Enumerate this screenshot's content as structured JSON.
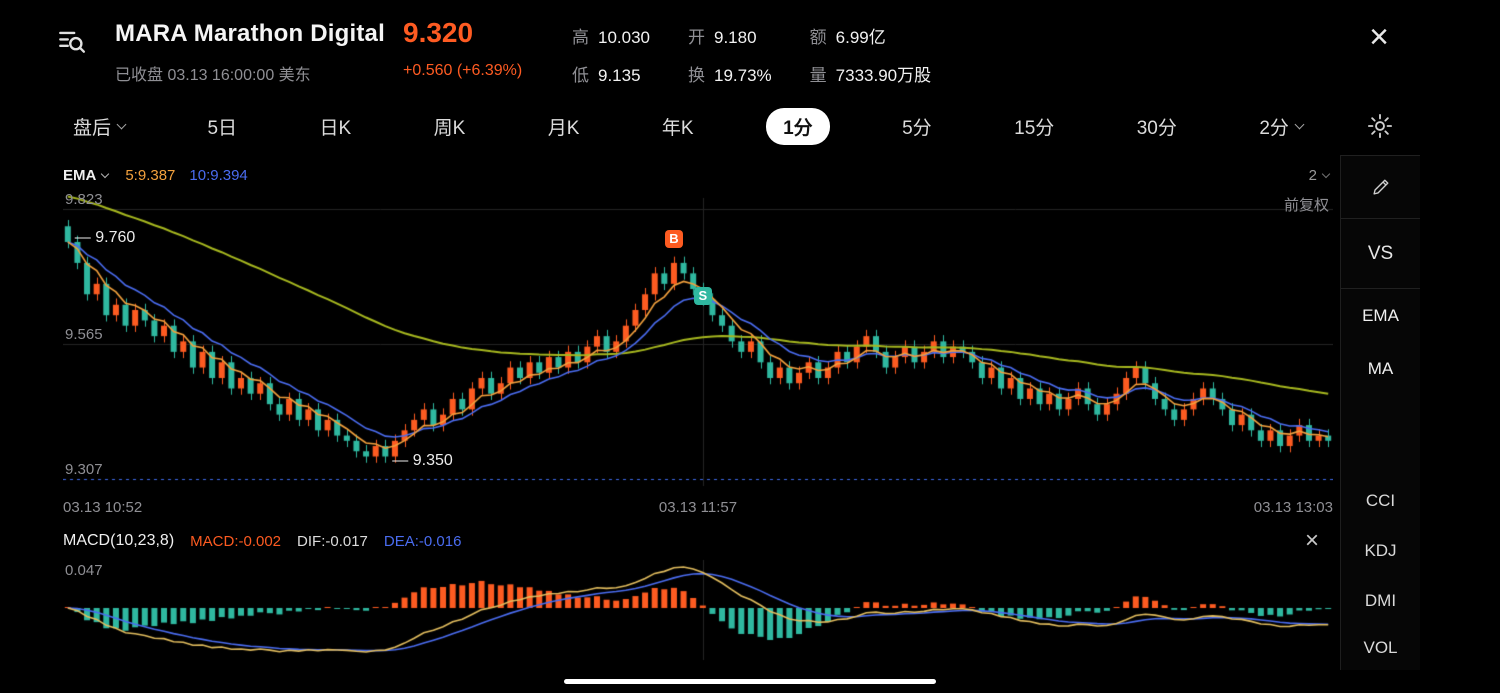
{
  "header": {
    "title": "MARA Marathon Digital",
    "status": "已收盘 03.13 16:00:00 美东",
    "price": "9.320",
    "change": "+0.560 (+6.39%)",
    "stats": [
      {
        "label": "高",
        "value": "10.030"
      },
      {
        "label": "低",
        "value": "9.135"
      },
      {
        "label": "开",
        "value": "9.180"
      },
      {
        "label": "换",
        "value": "19.73%"
      },
      {
        "label": "额",
        "value": "6.99亿"
      },
      {
        "label": "量",
        "value": "7333.90万股"
      }
    ]
  },
  "tabs": [
    {
      "label": "盘后",
      "chevron": true
    },
    {
      "label": "5日"
    },
    {
      "label": "日K"
    },
    {
      "label": "周K"
    },
    {
      "label": "月K"
    },
    {
      "label": "年K"
    },
    {
      "label": "1分",
      "selected": true
    },
    {
      "label": "5分"
    },
    {
      "label": "15分"
    },
    {
      "label": "30分"
    },
    {
      "label": "2分",
      "chevron": true
    }
  ],
  "chart": {
    "indicator_label": "EMA",
    "ema5_label": "5:9.387",
    "ema10_label": "10:9.394",
    "decimals_label": "2",
    "adjust_label": "前复权",
    "y_labels": [
      "9.823",
      "9.565",
      "9.307"
    ],
    "time_labels": [
      "03.13 10:52",
      "03.13 11:57",
      "03.13 13:03"
    ],
    "annotation_high": "— 9.760",
    "annotation_low": "— 9.350",
    "marker_buy": "B",
    "marker_sell": "S"
  },
  "macd_panel": {
    "title": "MACD(10,23,8)",
    "macd_label": "MACD:-0.002",
    "dif_label": "DIF:-0.017",
    "dea_label": "DEA:-0.016",
    "scale_label": "0.047"
  },
  "sidebar": {
    "items": [
      "VS",
      "EMA",
      "MA",
      "CCI",
      "KDJ",
      "DMI",
      "VOL"
    ]
  },
  "colors": {
    "up": "#fd5b21",
    "down": "#2fb8a0",
    "price_accent": "#fe5b22",
    "ema5": "#f3a13d",
    "ema10": "#4a6cf0",
    "ma_long": "#a6b71f",
    "dotted": "#3e6ae8",
    "grid": "#242424",
    "dif_line": "#e2bd5e",
    "dea_line": "#4a6cf0",
    "muted": "#8f8f94"
  },
  "chart_data": {
    "type": "candlestick",
    "interval": "1分",
    "x_start": "03.13 10:52",
    "x_mid": "03.13 11:57",
    "x_end": "03.13 13:03",
    "y_gridlines": [
      9.823,
      9.565,
      9.307
    ],
    "session_high_annotation": 9.76,
    "session_low_annotation": 9.35,
    "last_price": 9.32,
    "first_open": 9.79,
    "wick": 0.012,
    "mid_index": 66,
    "long_ma_seed": 9.85,
    "long_ma_period": 60,
    "ema_periods": [
      5,
      10
    ],
    "ema_last": {
      "ema5": 9.387,
      "ema10": 9.394
    },
    "closes": [
      9.76,
      9.72,
      9.66,
      9.68,
      9.62,
      9.64,
      9.6,
      9.63,
      9.61,
      9.58,
      9.6,
      9.55,
      9.57,
      9.52,
      9.55,
      9.5,
      9.53,
      9.48,
      9.5,
      9.47,
      9.49,
      9.45,
      9.43,
      9.46,
      9.42,
      9.44,
      9.4,
      9.42,
      9.39,
      9.38,
      9.36,
      9.35,
      9.37,
      9.35,
      9.38,
      9.4,
      9.42,
      9.44,
      9.41,
      9.43,
      9.46,
      9.44,
      9.48,
      9.5,
      9.47,
      9.49,
      9.52,
      9.5,
      9.53,
      9.51,
      9.54,
      9.52,
      9.55,
      9.53,
      9.56,
      9.58,
      9.55,
      9.57,
      9.6,
      9.63,
      9.66,
      9.7,
      9.68,
      9.72,
      9.7,
      9.67,
      9.65,
      9.62,
      9.6,
      9.57,
      9.55,
      9.57,
      9.53,
      9.5,
      9.52,
      9.49,
      9.51,
      9.53,
      9.5,
      9.52,
      9.55,
      9.53,
      9.56,
      9.58,
      9.55,
      9.52,
      9.54,
      9.56,
      9.53,
      9.55,
      9.57,
      9.54,
      9.56,
      9.55,
      9.53,
      9.5,
      9.52,
      9.48,
      9.5,
      9.46,
      9.48,
      9.45,
      9.47,
      9.44,
      9.46,
      9.48,
      9.45,
      9.43,
      9.45,
      9.47,
      9.5,
      9.52,
      9.49,
      9.46,
      9.44,
      9.42,
      9.44,
      9.46,
      9.48,
      9.46,
      9.44,
      9.41,
      9.43,
      9.4,
      9.38,
      9.4,
      9.37,
      9.39,
      9.41,
      9.38,
      9.39,
      9.38
    ],
    "markers": [
      {
        "type": "B",
        "index": 63
      },
      {
        "type": "S",
        "index": 66
      }
    ],
    "annotations": [
      {
        "index": 0,
        "price": 9.765
      },
      {
        "index": 33,
        "price": 9.34
      }
    ],
    "macd": {
      "fast": 10,
      "slow": 23,
      "signal": 8,
      "last": {
        "macd": -0.002,
        "dif": -0.017,
        "dea": -0.016
      },
      "scale_max": 0.047
    }
  }
}
